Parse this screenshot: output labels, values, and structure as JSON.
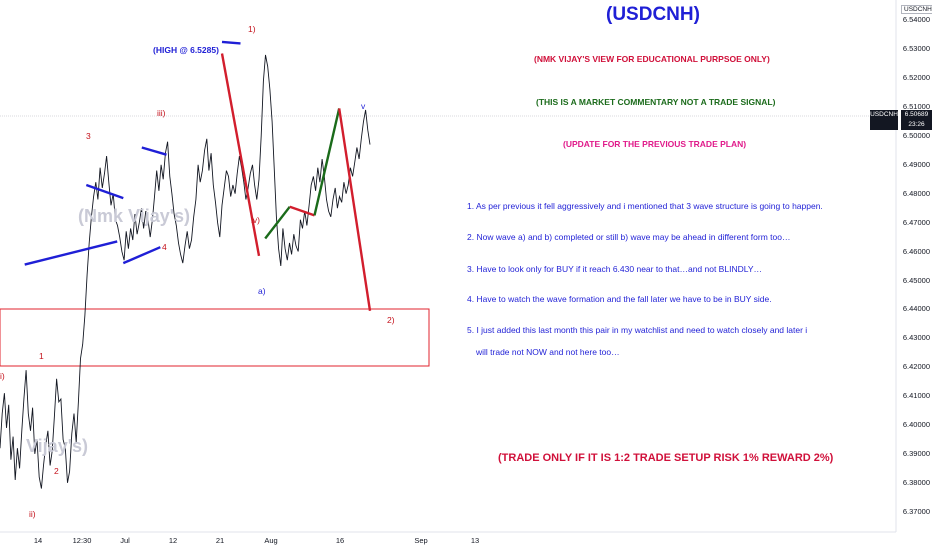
{
  "chart_data": {
    "type": "line",
    "symbol": "USDCNH",
    "title": "(USDCNH)",
    "y_axis": {
      "range": [
        6.363,
        6.547
      ],
      "ticks": [
        "6.54000",
        "6.53000",
        "6.52000",
        "6.51000",
        "6.50000",
        "6.49000",
        "6.48000",
        "6.47000",
        "6.46000",
        "6.45000",
        "6.44000",
        "6.43000",
        "6.42000",
        "6.41000",
        "6.40000",
        "6.39000",
        "6.38000",
        "6.37000"
      ]
    },
    "x_axis": {
      "ticks": [
        "14",
        "12:30",
        "Jul",
        "12",
        "21",
        "Aug",
        "16",
        "Sep",
        "13"
      ]
    },
    "current_price": "6.50689",
    "countdown": "23:26",
    "series": [
      {
        "values": [
          6.392,
          6.404,
          6.411,
          6.399,
          6.407,
          6.388,
          6.396,
          6.381,
          6.392,
          6.385,
          6.398,
          6.409,
          6.419,
          6.404,
          6.398,
          6.406,
          6.39,
          6.395,
          6.382,
          6.378,
          6.386,
          6.393,
          6.398,
          6.386,
          6.391,
          6.403,
          6.416,
          6.408,
          6.409,
          6.395,
          6.392,
          6.38,
          6.384,
          6.397,
          6.404,
          6.394,
          6.408,
          6.423,
          6.428,
          6.438,
          6.452,
          6.463,
          6.472,
          6.479,
          6.484,
          6.478,
          6.489,
          6.482,
          6.487,
          6.493,
          6.484,
          6.476,
          6.48,
          6.471,
          6.469,
          6.465,
          6.46,
          6.457,
          6.467,
          6.461,
          6.468,
          6.464,
          6.473,
          6.466,
          6.47,
          6.475,
          6.468,
          6.474,
          6.471,
          6.465,
          6.471,
          6.479,
          6.488,
          6.481,
          6.49,
          6.485,
          6.494,
          6.498,
          6.486,
          6.48,
          6.473,
          6.469,
          6.463,
          6.459,
          6.456,
          6.462,
          6.467,
          6.461,
          6.464,
          6.472,
          6.478,
          6.49,
          6.484,
          6.488,
          6.495,
          6.499,
          6.488,
          6.494,
          6.483,
          6.477,
          6.47,
          6.465,
          6.476,
          6.482,
          6.488,
          6.486,
          6.479,
          6.483,
          6.48,
          6.487,
          6.493,
          6.489,
          6.484,
          6.478,
          6.482,
          6.487,
          6.49,
          6.483,
          6.478,
          6.485,
          6.5,
          6.519,
          6.528,
          6.524,
          6.516,
          6.505,
          6.489,
          6.472,
          6.461,
          6.455,
          6.468,
          6.461,
          6.457,
          6.463,
          6.459,
          6.466,
          6.462,
          6.46,
          6.471,
          6.468,
          6.474,
          6.469,
          6.476,
          6.483,
          6.486,
          6.481,
          6.489,
          6.484,
          6.492,
          6.486,
          6.478,
          6.474,
          6.472,
          6.478,
          6.482,
          6.475,
          6.479,
          6.477,
          6.484,
          6.48,
          6.483,
          6.489,
          6.486,
          6.491,
          6.496,
          6.492,
          6.499,
          6.505,
          6.509,
          6.502,
          6.497
        ]
      }
    ],
    "drawings": [
      {
        "color": "#1f1fd6",
        "points": [
          [
            14,
            6.483
          ],
          [
            20,
            6.4785
          ]
        ]
      },
      {
        "color": "#1f1fd6",
        "points": [
          [
            4,
            6.4555
          ],
          [
            19,
            6.4635
          ]
        ]
      },
      {
        "color": "#1f1fd6",
        "points": [
          [
            23,
            6.496
          ],
          [
            27,
            6.4935
          ]
        ]
      },
      {
        "color": "#1f1fd6",
        "points": [
          [
            20,
            6.456
          ],
          [
            26,
            6.4615
          ]
        ]
      },
      {
        "color": "#1f1fd6",
        "points": [
          [
            36,
            6.5325
          ],
          [
            39,
            6.532
          ]
        ]
      },
      {
        "color": "#d21e2d",
        "points": [
          [
            36,
            6.5285
          ],
          [
            42,
            6.4585
          ]
        ]
      },
      {
        "color": "#1a6b1a",
        "points": [
          [
            43,
            6.4645
          ],
          [
            47,
            6.4755
          ]
        ]
      },
      {
        "color": "#d21e2d",
        "points": [
          [
            47,
            6.4755
          ],
          [
            51,
            6.4725
          ]
        ]
      },
      {
        "color": "#1a6b1a",
        "points": [
          [
            51,
            6.4725
          ],
          [
            55,
            6.5095
          ]
        ]
      },
      {
        "color": "#d21e2d",
        "points": [
          [
            55,
            6.5095
          ],
          [
            60,
            6.4395
          ]
        ]
      }
    ],
    "zone": {
      "top": 6.441,
      "bottom": 6.4205,
      "color": "#e0232e"
    }
  },
  "annotations": {
    "high": "(HIGH @ 6.5285)",
    "view": "(NMK VIJAY'S VIEW FOR EDUCATIONAL PURPSOE ONLY)",
    "commentary": "(THIS IS A MARKET COMMENTARY NOT A TRADE SIGNAL)",
    "update": "(UPDATE FOR THE PREVIOUS TRADE PLAN)",
    "points": [
      "1. As per previous it fell aggressively and i mentioned that 3 wave structure is going to happen.",
      "2. Now wave a) and b) completed or still b) wave may be ahead in different form too…",
      "3. Have to look only for BUY if it reach 6.430 near to that…and not BLINDLY…",
      "4. Have to watch the wave formation and the fall later we have to be in BUY side.",
      "5. I just added this last month this pair in my watchlist and need to watch closely and later i",
      "will trade not NOW and not here too…"
    ],
    "trade_rule": "(TRADE ONLY IF IT IS 1:2 TRADE SETUP RISK 1% REWARD 2%)"
  },
  "wave_labels": {
    "w1": "1)",
    "w3": "3",
    "w_iii": "iii)",
    "w4": "4",
    "w_iv": "iv)",
    "w_a": "a)",
    "w_2": "2)",
    "w_1": "1",
    "w_i": "i)",
    "w_2b": "2",
    "w_ii": "ii)",
    "w_v": "v"
  },
  "watermark": {
    "a": "(Nmk Vijay's)",
    "b": "Vijay's)"
  }
}
